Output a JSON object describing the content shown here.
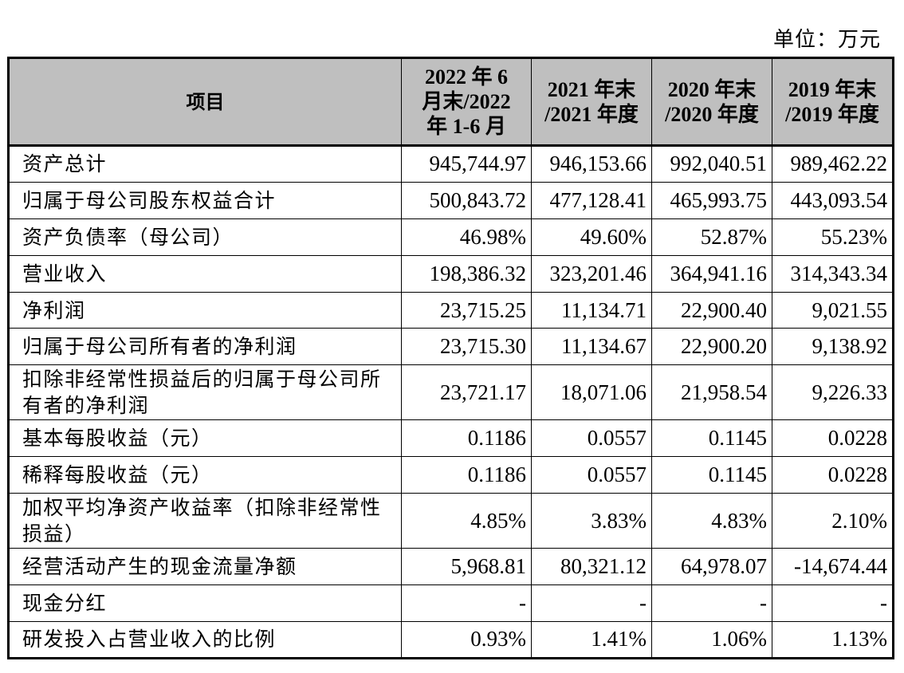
{
  "unit_label": "单位：万元",
  "table": {
    "header": {
      "item": "项目",
      "periods": [
        [
          "2022 年 6",
          "月末/2022",
          "年 1-6 月"
        ],
        [
          "2021 年末",
          "/2021 年度"
        ],
        [
          "2020 年末",
          "/2020 年度"
        ],
        [
          "2019 年末",
          "/2019 年度"
        ]
      ]
    },
    "rows": [
      {
        "label": "资产总计",
        "values": [
          "945,744.97",
          "946,153.66",
          "992,040.51",
          "989,462.22"
        ]
      },
      {
        "label": "归属于母公司股东权益合计",
        "values": [
          "500,843.72",
          "477,128.41",
          "465,993.75",
          "443,093.54"
        ]
      },
      {
        "label": "资产负债率（母公司）",
        "values": [
          "46.98%",
          "49.60%",
          "52.87%",
          "55.23%"
        ]
      },
      {
        "label": "营业收入",
        "values": [
          "198,386.32",
          "323,201.46",
          "364,941.16",
          "314,343.34"
        ]
      },
      {
        "label": "净利润",
        "values": [
          "23,715.25",
          "11,134.71",
          "22,900.40",
          "9,021.55"
        ]
      },
      {
        "label": "归属于母公司所有者的净利润",
        "values": [
          "23,715.30",
          "11,134.67",
          "22,900.20",
          "9,138.92"
        ]
      },
      {
        "label": "扣除非经常性损益后的归属于母公司所有者的净利润",
        "values": [
          "23,721.17",
          "18,071.06",
          "21,958.54",
          "9,226.33"
        ]
      },
      {
        "label": "基本每股收益（元）",
        "values": [
          "0.1186",
          "0.0557",
          "0.1145",
          "0.0228"
        ]
      },
      {
        "label": "稀释每股收益（元）",
        "values": [
          "0.1186",
          "0.0557",
          "0.1145",
          "0.0228"
        ]
      },
      {
        "label": "加权平均净资产收益率（扣除非经常性损益）",
        "values": [
          "4.85%",
          "3.83%",
          "4.83%",
          "2.10%"
        ]
      },
      {
        "label": "经营活动产生的现金流量净额",
        "values": [
          "5,968.81",
          "80,321.12",
          "64,978.07",
          "-14,674.44"
        ]
      },
      {
        "label": "现金分红",
        "values": [
          "-",
          "-",
          "-",
          "-"
        ]
      },
      {
        "label": "研发投入占营业收入的比例",
        "values": [
          "0.93%",
          "1.41%",
          "1.06%",
          "1.13%"
        ]
      }
    ]
  }
}
